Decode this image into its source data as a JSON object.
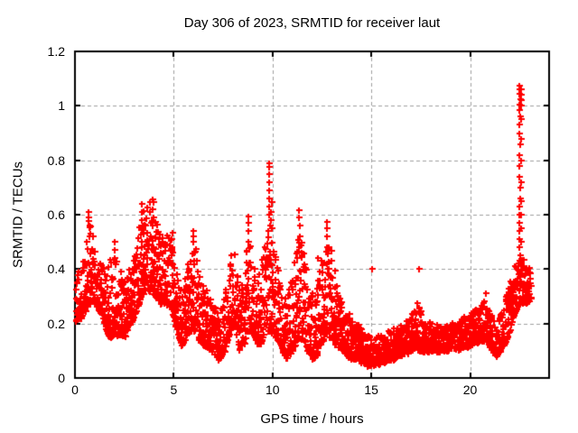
{
  "chart_data": {
    "type": "scatter",
    "title": "Day 306 of 2023, SRMTID for receiver laut",
    "xlabel": "GPS time / hours",
    "ylabel": "SRMTID / TECUs",
    "xlim": [
      0,
      24
    ],
    "ylim": [
      0,
      1.2
    ],
    "xticks": [
      0,
      5,
      10,
      15,
      20
    ],
    "xtick_labels": [
      "0",
      "5",
      "10",
      "15",
      "20"
    ],
    "yticks": [
      0,
      0.2,
      0.4,
      0.6,
      0.8,
      1,
      1.2
    ],
    "ytick_labels": [
      "0",
      "0.2",
      "0.4",
      "0.6",
      "0.8",
      "1",
      "1.2"
    ],
    "grid": true,
    "legend_position": "none",
    "series_name": "SRMTID",
    "marker": {
      "shape": "plus",
      "size": 7,
      "stroke": 2,
      "color": "#ff0000"
    },
    "colors": {
      "background": "#ffffff",
      "border": "#000000",
      "grid": "#a0a0a0",
      "text": "#000000"
    },
    "time_range": [
      0.02,
      23.1
    ],
    "points_per_hour": 122,
    "seed": 306,
    "envelope": [
      [
        0.0,
        0.21,
        0.42
      ],
      [
        0.3,
        0.22,
        0.38
      ],
      [
        0.55,
        0.25,
        0.5
      ],
      [
        0.7,
        0.27,
        0.61
      ],
      [
        0.85,
        0.28,
        0.55
      ],
      [
        1.0,
        0.28,
        0.5
      ],
      [
        1.2,
        0.25,
        0.45
      ],
      [
        1.5,
        0.18,
        0.4
      ],
      [
        1.8,
        0.15,
        0.44
      ],
      [
        2.0,
        0.16,
        0.46
      ],
      [
        2.2,
        0.16,
        0.42
      ],
      [
        2.5,
        0.15,
        0.36
      ],
      [
        2.8,
        0.2,
        0.42
      ],
      [
        3.1,
        0.24,
        0.47
      ],
      [
        3.35,
        0.3,
        0.62
      ],
      [
        3.6,
        0.33,
        0.62
      ],
      [
        3.85,
        0.32,
        0.66
      ],
      [
        4.1,
        0.3,
        0.58
      ],
      [
        4.35,
        0.27,
        0.55
      ],
      [
        4.6,
        0.28,
        0.52
      ],
      [
        4.85,
        0.26,
        0.52
      ],
      [
        5.1,
        0.18,
        0.42
      ],
      [
        5.4,
        0.12,
        0.3
      ],
      [
        5.7,
        0.16,
        0.45
      ],
      [
        6.0,
        0.18,
        0.52
      ],
      [
        6.3,
        0.14,
        0.4
      ],
      [
        6.6,
        0.12,
        0.33
      ],
      [
        7.0,
        0.1,
        0.28
      ],
      [
        7.3,
        0.07,
        0.22
      ],
      [
        7.6,
        0.1,
        0.32
      ],
      [
        7.9,
        0.18,
        0.45
      ],
      [
        8.1,
        0.2,
        0.46
      ],
      [
        8.3,
        0.1,
        0.33
      ],
      [
        8.6,
        0.13,
        0.42
      ],
      [
        8.8,
        0.18,
        0.55
      ],
      [
        9.0,
        0.16,
        0.48
      ],
      [
        9.3,
        0.12,
        0.38
      ],
      [
        9.6,
        0.15,
        0.48
      ],
      [
        9.85,
        0.18,
        0.58
      ],
      [
        10.1,
        0.16,
        0.48
      ],
      [
        10.4,
        0.12,
        0.35
      ],
      [
        10.7,
        0.07,
        0.28
      ],
      [
        11.0,
        0.1,
        0.38
      ],
      [
        11.3,
        0.14,
        0.52
      ],
      [
        11.55,
        0.14,
        0.5
      ],
      [
        11.8,
        0.1,
        0.35
      ],
      [
        12.1,
        0.06,
        0.3
      ],
      [
        12.4,
        0.12,
        0.42
      ],
      [
        12.7,
        0.16,
        0.52
      ],
      [
        13.0,
        0.14,
        0.46
      ],
      [
        13.3,
        0.12,
        0.35
      ],
      [
        13.6,
        0.1,
        0.28
      ],
      [
        14.0,
        0.07,
        0.22
      ],
      [
        14.4,
        0.06,
        0.19
      ],
      [
        14.8,
        0.05,
        0.16
      ],
      [
        15.2,
        0.05,
        0.15
      ],
      [
        15.6,
        0.06,
        0.17
      ],
      [
        16.0,
        0.07,
        0.18
      ],
      [
        16.5,
        0.08,
        0.19
      ],
      [
        17.0,
        0.1,
        0.23
      ],
      [
        17.3,
        0.11,
        0.28
      ],
      [
        17.6,
        0.1,
        0.23
      ],
      [
        18.0,
        0.1,
        0.2
      ],
      [
        18.5,
        0.1,
        0.19
      ],
      [
        19.0,
        0.1,
        0.2
      ],
      [
        19.5,
        0.11,
        0.21
      ],
      [
        20.0,
        0.12,
        0.24
      ],
      [
        20.4,
        0.13,
        0.26
      ],
      [
        20.8,
        0.14,
        0.3
      ],
      [
        21.1,
        0.1,
        0.22
      ],
      [
        21.35,
        0.08,
        0.19
      ],
      [
        21.6,
        0.11,
        0.25
      ],
      [
        21.9,
        0.15,
        0.32
      ],
      [
        22.2,
        0.22,
        0.4
      ],
      [
        22.45,
        0.27,
        0.46
      ],
      [
        22.7,
        0.28,
        0.44
      ],
      [
        22.95,
        0.28,
        0.42
      ],
      [
        23.1,
        0.3,
        0.4
      ]
    ],
    "spikes": [
      {
        "x": 0.7,
        "ys": [
          0.52,
          0.56,
          0.59,
          0.61
        ]
      },
      {
        "x": 2.0,
        "ys": [
          0.44,
          0.47,
          0.5
        ]
      },
      {
        "x": 3.4,
        "ys": [
          0.5,
          0.55,
          0.58,
          0.61,
          0.64
        ]
      },
      {
        "x": 3.95,
        "ys": [
          0.56,
          0.59,
          0.62,
          0.645,
          0.655
        ]
      },
      {
        "x": 4.9,
        "ys": [
          0.48,
          0.51,
          0.535
        ]
      },
      {
        "x": 6.0,
        "ys": [
          0.46,
          0.5,
          0.54
        ]
      },
      {
        "x": 8.8,
        "ys": [
          0.5,
          0.54,
          0.57,
          0.595
        ]
      },
      {
        "x": 9.83,
        "ys": [
          0.56,
          0.6,
          0.63,
          0.66,
          0.69,
          0.72,
          0.75,
          0.775,
          0.79
        ]
      },
      {
        "x": 9.93,
        "ys": [
          0.55,
          0.58,
          0.61,
          0.645
        ]
      },
      {
        "x": 11.35,
        "ys": [
          0.48,
          0.52,
          0.56,
          0.59,
          0.615
        ]
      },
      {
        "x": 12.75,
        "ys": [
          0.48,
          0.52,
          0.55,
          0.575
        ]
      },
      {
        "x": 22.5,
        "ys": [
          0.48,
          0.51,
          0.54,
          0.57,
          0.6,
          0.63,
          0.66,
          0.7,
          0.74,
          0.78,
          0.82,
          0.86,
          0.9,
          0.93,
          0.96,
          0.985,
          1.005,
          1.025,
          1.045,
          1.06,
          1.075
        ]
      },
      {
        "x": 22.58,
        "ys": [
          0.5,
          0.55,
          0.6,
          0.65,
          0.72,
          0.8,
          0.88,
          0.95,
          1.0,
          1.02,
          1.04,
          1.06
        ]
      }
    ],
    "outliers": [
      [
        15.05,
        0.4
      ],
      [
        17.4,
        0.4
      ],
      [
        20.8,
        0.31
      ],
      [
        12.3,
        0.44
      ]
    ]
  }
}
